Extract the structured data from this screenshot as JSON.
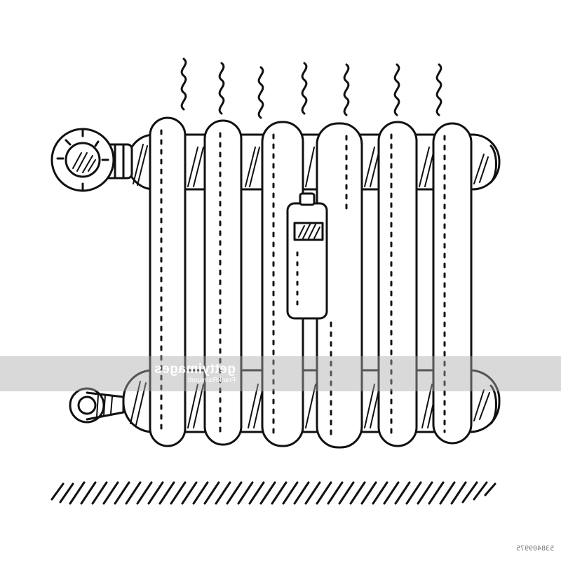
{
  "illustration": {
    "subject": "radiator",
    "style": "black ink hand-drawn doodle",
    "colors": {
      "ink": "#111111",
      "paper": "#ffffff",
      "watermark_band": "#aaaaaa"
    }
  },
  "watermark": {
    "brand": "gettyimages",
    "credit": "FrankRamspott",
    "image_id": "538409975"
  }
}
